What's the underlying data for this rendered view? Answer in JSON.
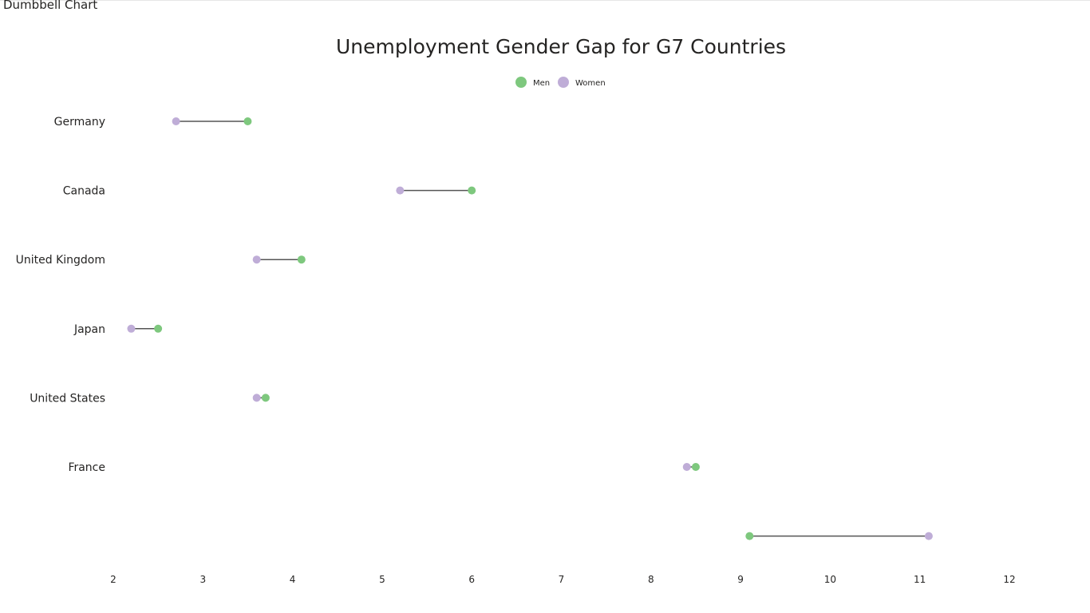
{
  "visual": {
    "title": "Dumbbell Chart"
  },
  "chart_data": {
    "type": "scatter",
    "subtype": "dumbbell",
    "title": "Unemployment Gender Gap for G7 Countries",
    "xlabel": "",
    "ylabel": "",
    "xlim": [
      2,
      12
    ],
    "xticks": [
      2,
      3,
      4,
      5,
      6,
      7,
      8,
      9,
      10,
      11,
      12
    ],
    "grid": false,
    "legend_position": "top-center",
    "categories": [
      "Germany",
      "Canada",
      "United Kingdom",
      "Japan",
      "United States",
      "France",
      ""
    ],
    "series": [
      {
        "name": "Men",
        "color": "#7ec87e",
        "values": [
          3.5,
          6.0,
          4.1,
          2.5,
          3.7,
          8.5,
          9.1
        ]
      },
      {
        "name": "Women",
        "color": "#bfadd7",
        "values": [
          2.7,
          5.2,
          3.6,
          2.2,
          3.6,
          8.4,
          11.1
        ]
      }
    ],
    "connector_color": "#555555"
  }
}
